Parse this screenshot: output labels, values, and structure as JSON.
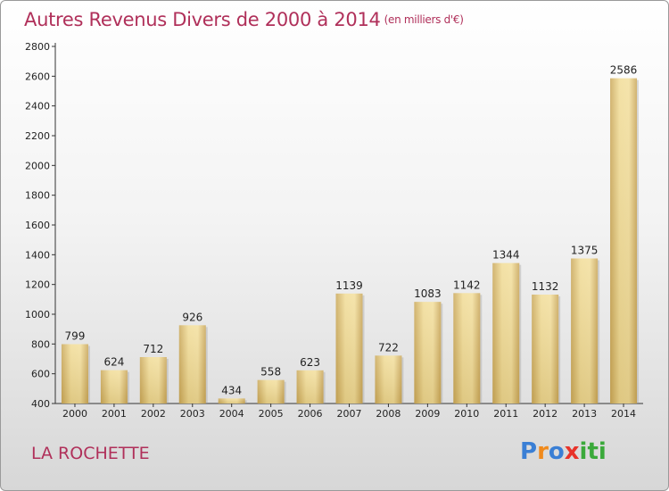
{
  "title": "Autres Revenus Divers de 2000 à 2014",
  "subtitle": "(en milliers d'€)",
  "commune": "LA ROCHETTE",
  "logo": {
    "letters": [
      "P",
      "r",
      "o",
      "x",
      "i",
      "t",
      "i"
    ],
    "colors": [
      "#3a7fd5",
      "#f08a1c",
      "#3a7fd5",
      "#e8332a",
      "#3aa93a",
      "#3aa93a",
      "#3aa93a"
    ]
  },
  "chart_data": {
    "type": "bar",
    "categories": [
      "2000",
      "2001",
      "2002",
      "2003",
      "2004",
      "2005",
      "2006",
      "2007",
      "2008",
      "2009",
      "2010",
      "2011",
      "2012",
      "2013",
      "2014"
    ],
    "values": [
      799,
      624,
      712,
      926,
      434,
      558,
      623,
      1139,
      722,
      1083,
      1142,
      1344,
      1132,
      1375,
      2586
    ],
    "ylim": [
      400,
      2800
    ],
    "yticks": [
      "400",
      "600",
      "800",
      "1000",
      "1200",
      "1400",
      "1600",
      "1800",
      "2000",
      "2200",
      "2400",
      "2600",
      "2800"
    ],
    "grid": false,
    "bar_color": "#e9cf85"
  }
}
